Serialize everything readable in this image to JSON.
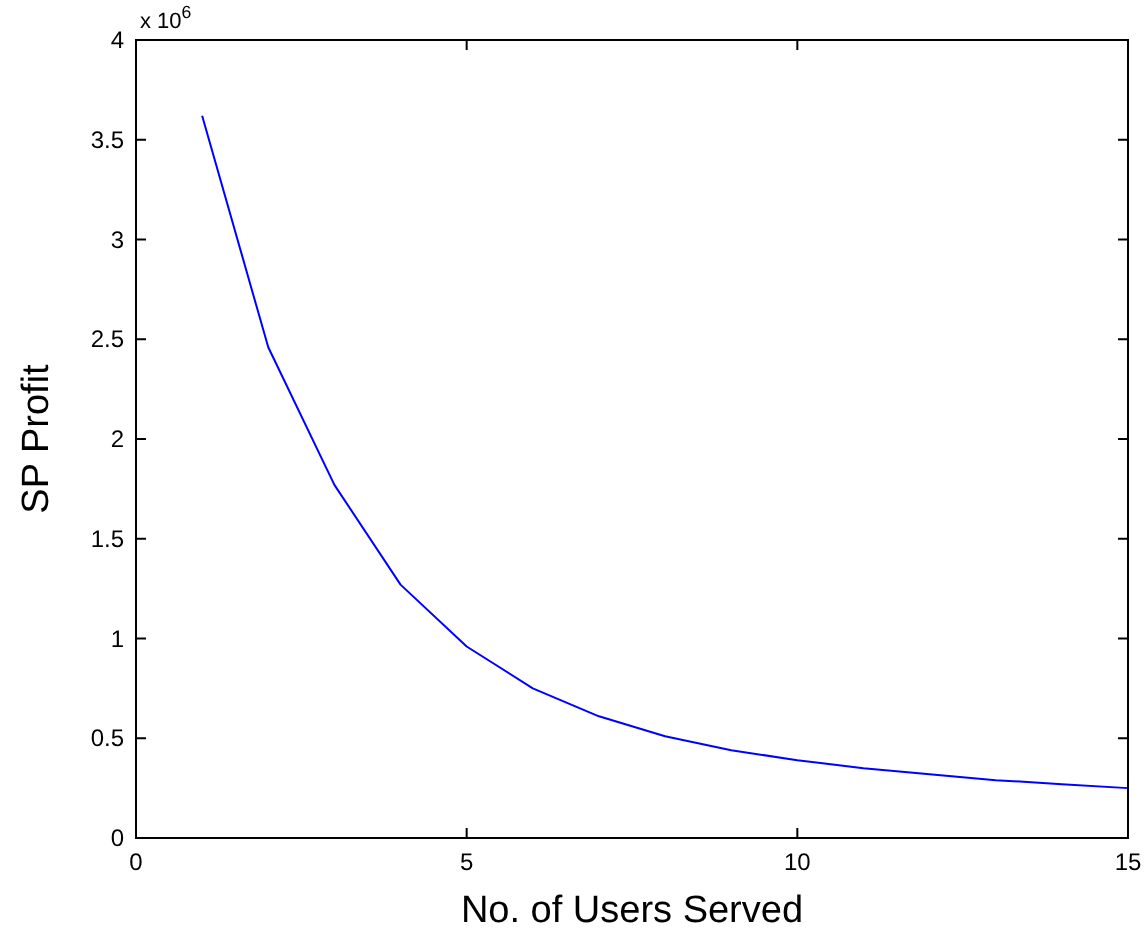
{
  "chart_data": {
    "type": "line",
    "xlabel": "No. of Users Served",
    "ylabel": "SP Profit",
    "annotations": [
      "x 10$^{6}$"
    ],
    "x": [
      1,
      2,
      3,
      4,
      5,
      6,
      7,
      8,
      9,
      10,
      11,
      12,
      13,
      14,
      15
    ],
    "series": [
      {
        "color": "#0000ff",
        "values": [
          3.62,
          2.46,
          1.77,
          1.27,
          0.96,
          0.75,
          0.61,
          0.51,
          0.44,
          0.39,
          0.35,
          0.32,
          0.29,
          0.27,
          0.25
        ]
      }
    ],
    "xlim": [
      0,
      15
    ],
    "xticks": [
      0,
      5,
      10,
      15
    ],
    "ylim": [
      0,
      4
    ],
    "yticks": [
      0,
      0.5,
      1,
      1.5,
      2,
      2.5,
      3,
      3.5,
      4
    ]
  }
}
